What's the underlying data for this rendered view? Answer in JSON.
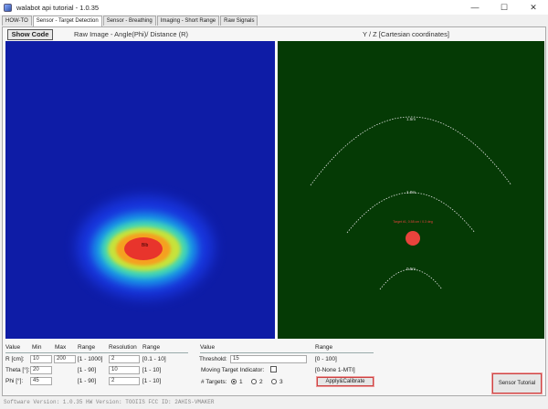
{
  "window": {
    "title": "walabot api tutorial - 1.0.35",
    "minimize": "—",
    "maximize": "☐",
    "close": "✕"
  },
  "tabs": [
    "HOW-TO",
    "Sensor - Target Detection",
    "Sensor - Breathing",
    "Imaging - Short Range",
    "Raw Signals"
  ],
  "active_tab": 1,
  "show_code_label": "Show Code",
  "raw_panel": {
    "title": "Raw Image - Angle(Phi)/ Distance (R)",
    "blob_label": "Blb"
  },
  "yz_panel": {
    "title": "Y / Z [Cartesian coordinates]",
    "arcs": [
      "1.5m",
      "1.0m",
      "0.5m"
    ],
    "target_label": "Target #1, 0.58 cm / 0.3 deg",
    "background": "#053a05",
    "target_color": "#e8433c"
  },
  "params": {
    "left_headers": [
      "Value",
      "Min",
      "Max",
      "Range",
      "Resolution",
      "Range"
    ],
    "rows": [
      {
        "label": "R [cm]:",
        "min": "10",
        "max": "200",
        "range": "[1 - 1000]",
        "res": "2",
        "res_range": "[0.1 - 10]"
      },
      {
        "label": "Theta [°]:",
        "min": "20",
        "max": "",
        "range": "[1 - 90]",
        "res": "10",
        "res_range": "[1 - 10]"
      },
      {
        "label": "Phi [°]:",
        "min": "45",
        "max": "",
        "range": "[1 - 90]",
        "res": "2",
        "res_range": "[1 - 10]"
      }
    ],
    "right_headers": [
      "Value",
      "Range"
    ],
    "threshold": {
      "label": "Threshold:",
      "value": "15",
      "range": "[0 - 100]"
    },
    "mti": {
      "label": "Moving Target Indicator:",
      "range": "[0-None 1-MTI]"
    },
    "targets": {
      "label": "# Targets:",
      "options": [
        "1",
        "2",
        "3"
      ],
      "selected": 0
    },
    "apply_label": "Apply&Calibrate",
    "tutorial_label": "Sensor Tutorial"
  },
  "status_text": "Software Version: 1.0.35   HW Version: TOOIIS   FCC ID: 2AHIS-VMAKER"
}
